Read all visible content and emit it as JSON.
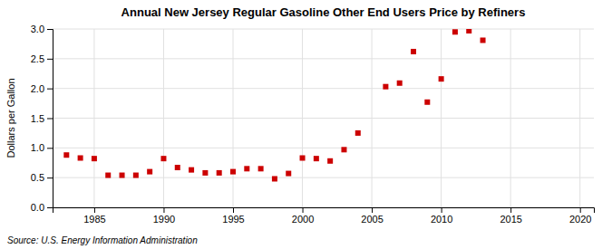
{
  "chart_data": {
    "type": "scatter",
    "title": "Annual New Jersey Regular Gasoline Other End Users Price by Refiners",
    "ylabel": "Dollars per Gallon",
    "annotations": [
      "Source: U.S. Energy Information Administration"
    ],
    "x": [
      1983,
      1984,
      1985,
      1986,
      1987,
      1988,
      1989,
      1990,
      1991,
      1992,
      1993,
      1994,
      1995,
      1996,
      1997,
      1998,
      1999,
      2000,
      2001,
      2002,
      2003,
      2004,
      2006,
      2007,
      2008,
      2009,
      2010,
      2011,
      2012,
      2013
    ],
    "values": [
      0.88,
      0.83,
      0.82,
      0.54,
      0.54,
      0.54,
      0.6,
      0.82,
      0.67,
      0.63,
      0.58,
      0.58,
      0.6,
      0.65,
      0.65,
      0.48,
      0.57,
      0.83,
      0.82,
      0.78,
      0.97,
      1.25,
      2.03,
      2.09,
      2.62,
      1.77,
      2.16,
      2.95,
      2.97,
      2.81
    ],
    "color": "#cc0000",
    "marker": "square",
    "xlim": [
      1982,
      2021
    ],
    "ylim": [
      0.0,
      3.0
    ],
    "xticks": [
      1985,
      1990,
      1995,
      2000,
      2005,
      2010,
      2015,
      2020
    ],
    "yticks": [
      {
        "value": 0.0,
        "label": "0.0"
      },
      0.5,
      {
        "value": 1.0,
        "label": "1.0"
      },
      1.5,
      {
        "value": 2.0,
        "label": "2.0"
      },
      2.5,
      {
        "value": 3.0,
        "label": "3.0"
      }
    ],
    "grid": true
  }
}
